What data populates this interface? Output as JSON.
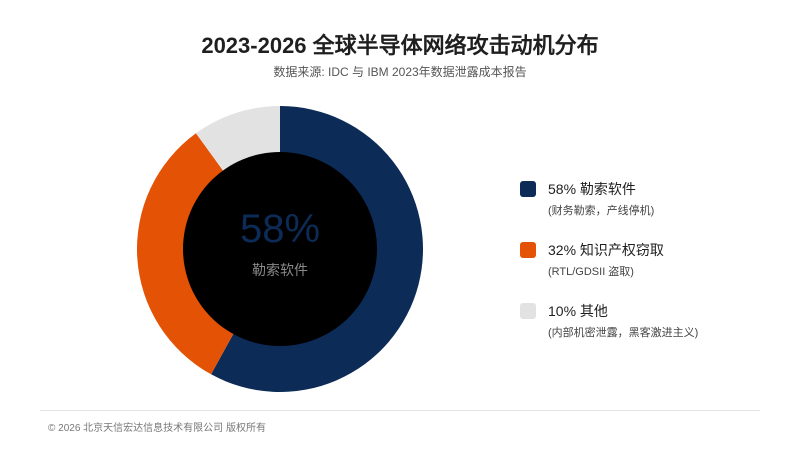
{
  "header": {
    "title": "2023-2026 全球半导体网络攻击动机分布",
    "subtitle": "数据来源: IDC 与 IBM 2023年数据泄露成本报告"
  },
  "chart_data": {
    "type": "pie",
    "title": "2023-2026 全球半导体网络攻击动机分布",
    "subtitle": "数据来源: IDC 与 IBM 2023年数据泄露成本报告",
    "center_value": "58%",
    "center_label": "勒索软件",
    "legend_position": "right",
    "slices": [
      {
        "name": "勒索软件",
        "value": 58,
        "label": "58% 勒索软件",
        "description": "(财务勒索，产线停机)",
        "color": "#0d2b57"
      },
      {
        "name": "知识产权窃取",
        "value": 32,
        "label": "32% 知识产权窃取",
        "description": "(RTL/GDSII 盗取)",
        "color": "#e35205"
      },
      {
        "name": "其他",
        "value": 10,
        "label": "10% 其他",
        "description": "(内部机密泄露，黑客激进主义)",
        "color": "#e2e2e2"
      }
    ]
  },
  "footer": {
    "copyright": "© 2026 北京天信宏达信息技术有限公司 版权所有"
  }
}
